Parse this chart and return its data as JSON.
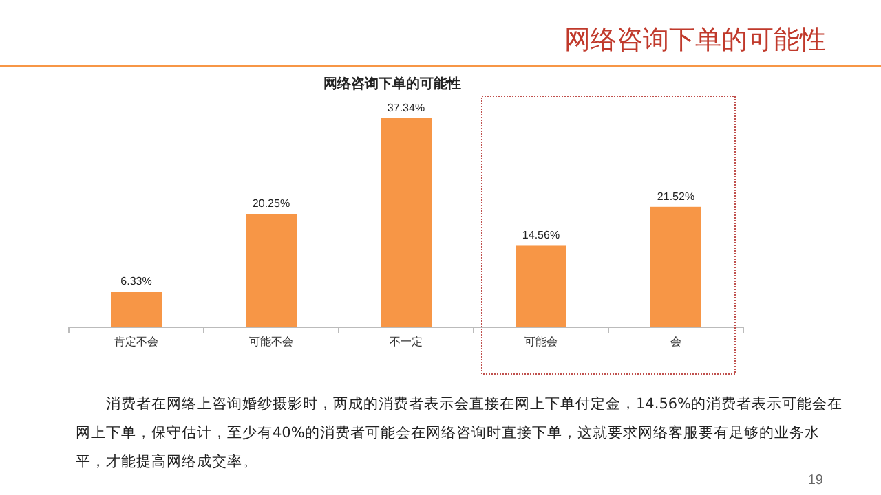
{
  "chart_data": {
    "type": "bar",
    "subtitle": "网络咨询下单的可能性",
    "title": "网络咨询下单的可能性",
    "categories": [
      "肯定不会",
      "可能不会",
      "不一定",
      "可能会",
      "会"
    ],
    "values": [
      6.33,
      20.25,
      37.34,
      14.56,
      21.52
    ],
    "color": "#f79646",
    "value_labels": [
      "6.33%",
      "20.25%",
      "37.34%",
      "14.56%",
      "21.52%"
    ],
    "annotations": [
      "消费者在网络上咨询婚纱摄影时，两成的消费者表示会直接在网上下单付定金，14.56%的消费者表示可能会在网上下单，保守估计，至少有40%的消费者可能会在网络咨询时直接下单，这就要求网络客服要有足够的业务水平，才能提高网络成交率。",
      "19"
    ]
  }
}
